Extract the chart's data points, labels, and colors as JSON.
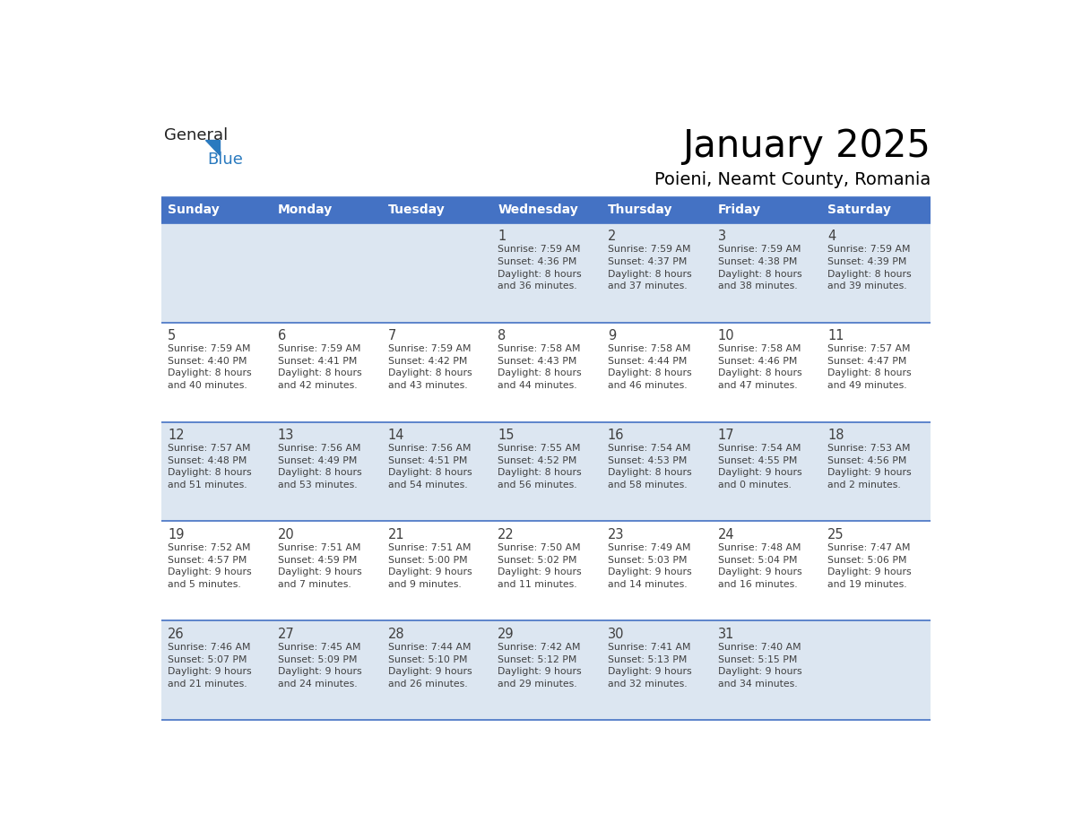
{
  "title": "January 2025",
  "subtitle": "Poieni, Neamt County, Romania",
  "header_bg": "#4472c4",
  "header_text_color": "#ffffff",
  "cell_bg_light": "#dce6f1",
  "cell_bg_white": "#ffffff",
  "divider_color": "#4472c4",
  "text_color": "#404040",
  "days_of_week": [
    "Sunday",
    "Monday",
    "Tuesday",
    "Wednesday",
    "Thursday",
    "Friday",
    "Saturday"
  ],
  "weeks": [
    [
      {
        "day": "",
        "info": ""
      },
      {
        "day": "",
        "info": ""
      },
      {
        "day": "",
        "info": ""
      },
      {
        "day": "1",
        "info": "Sunrise: 7:59 AM\nSunset: 4:36 PM\nDaylight: 8 hours\nand 36 minutes."
      },
      {
        "day": "2",
        "info": "Sunrise: 7:59 AM\nSunset: 4:37 PM\nDaylight: 8 hours\nand 37 minutes."
      },
      {
        "day": "3",
        "info": "Sunrise: 7:59 AM\nSunset: 4:38 PM\nDaylight: 8 hours\nand 38 minutes."
      },
      {
        "day": "4",
        "info": "Sunrise: 7:59 AM\nSunset: 4:39 PM\nDaylight: 8 hours\nand 39 minutes."
      }
    ],
    [
      {
        "day": "5",
        "info": "Sunrise: 7:59 AM\nSunset: 4:40 PM\nDaylight: 8 hours\nand 40 minutes."
      },
      {
        "day": "6",
        "info": "Sunrise: 7:59 AM\nSunset: 4:41 PM\nDaylight: 8 hours\nand 42 minutes."
      },
      {
        "day": "7",
        "info": "Sunrise: 7:59 AM\nSunset: 4:42 PM\nDaylight: 8 hours\nand 43 minutes."
      },
      {
        "day": "8",
        "info": "Sunrise: 7:58 AM\nSunset: 4:43 PM\nDaylight: 8 hours\nand 44 minutes."
      },
      {
        "day": "9",
        "info": "Sunrise: 7:58 AM\nSunset: 4:44 PM\nDaylight: 8 hours\nand 46 minutes."
      },
      {
        "day": "10",
        "info": "Sunrise: 7:58 AM\nSunset: 4:46 PM\nDaylight: 8 hours\nand 47 minutes."
      },
      {
        "day": "11",
        "info": "Sunrise: 7:57 AM\nSunset: 4:47 PM\nDaylight: 8 hours\nand 49 minutes."
      }
    ],
    [
      {
        "day": "12",
        "info": "Sunrise: 7:57 AM\nSunset: 4:48 PM\nDaylight: 8 hours\nand 51 minutes."
      },
      {
        "day": "13",
        "info": "Sunrise: 7:56 AM\nSunset: 4:49 PM\nDaylight: 8 hours\nand 53 minutes."
      },
      {
        "day": "14",
        "info": "Sunrise: 7:56 AM\nSunset: 4:51 PM\nDaylight: 8 hours\nand 54 minutes."
      },
      {
        "day": "15",
        "info": "Sunrise: 7:55 AM\nSunset: 4:52 PM\nDaylight: 8 hours\nand 56 minutes."
      },
      {
        "day": "16",
        "info": "Sunrise: 7:54 AM\nSunset: 4:53 PM\nDaylight: 8 hours\nand 58 minutes."
      },
      {
        "day": "17",
        "info": "Sunrise: 7:54 AM\nSunset: 4:55 PM\nDaylight: 9 hours\nand 0 minutes."
      },
      {
        "day": "18",
        "info": "Sunrise: 7:53 AM\nSunset: 4:56 PM\nDaylight: 9 hours\nand 2 minutes."
      }
    ],
    [
      {
        "day": "19",
        "info": "Sunrise: 7:52 AM\nSunset: 4:57 PM\nDaylight: 9 hours\nand 5 minutes."
      },
      {
        "day": "20",
        "info": "Sunrise: 7:51 AM\nSunset: 4:59 PM\nDaylight: 9 hours\nand 7 minutes."
      },
      {
        "day": "21",
        "info": "Sunrise: 7:51 AM\nSunset: 5:00 PM\nDaylight: 9 hours\nand 9 minutes."
      },
      {
        "day": "22",
        "info": "Sunrise: 7:50 AM\nSunset: 5:02 PM\nDaylight: 9 hours\nand 11 minutes."
      },
      {
        "day": "23",
        "info": "Sunrise: 7:49 AM\nSunset: 5:03 PM\nDaylight: 9 hours\nand 14 minutes."
      },
      {
        "day": "24",
        "info": "Sunrise: 7:48 AM\nSunset: 5:04 PM\nDaylight: 9 hours\nand 16 minutes."
      },
      {
        "day": "25",
        "info": "Sunrise: 7:47 AM\nSunset: 5:06 PM\nDaylight: 9 hours\nand 19 minutes."
      }
    ],
    [
      {
        "day": "26",
        "info": "Sunrise: 7:46 AM\nSunset: 5:07 PM\nDaylight: 9 hours\nand 21 minutes."
      },
      {
        "day": "27",
        "info": "Sunrise: 7:45 AM\nSunset: 5:09 PM\nDaylight: 9 hours\nand 24 minutes."
      },
      {
        "day": "28",
        "info": "Sunrise: 7:44 AM\nSunset: 5:10 PM\nDaylight: 9 hours\nand 26 minutes."
      },
      {
        "day": "29",
        "info": "Sunrise: 7:42 AM\nSunset: 5:12 PM\nDaylight: 9 hours\nand 29 minutes."
      },
      {
        "day": "30",
        "info": "Sunrise: 7:41 AM\nSunset: 5:13 PM\nDaylight: 9 hours\nand 32 minutes."
      },
      {
        "day": "31",
        "info": "Sunrise: 7:40 AM\nSunset: 5:15 PM\nDaylight: 9 hours\nand 34 minutes."
      },
      {
        "day": "",
        "info": ""
      }
    ]
  ],
  "logo_general_color": "#222222",
  "logo_blue_color": "#2a7abf",
  "logo_triangle_color": "#2a7abf",
  "fig_width": 11.88,
  "fig_height": 9.18,
  "dpi": 100
}
